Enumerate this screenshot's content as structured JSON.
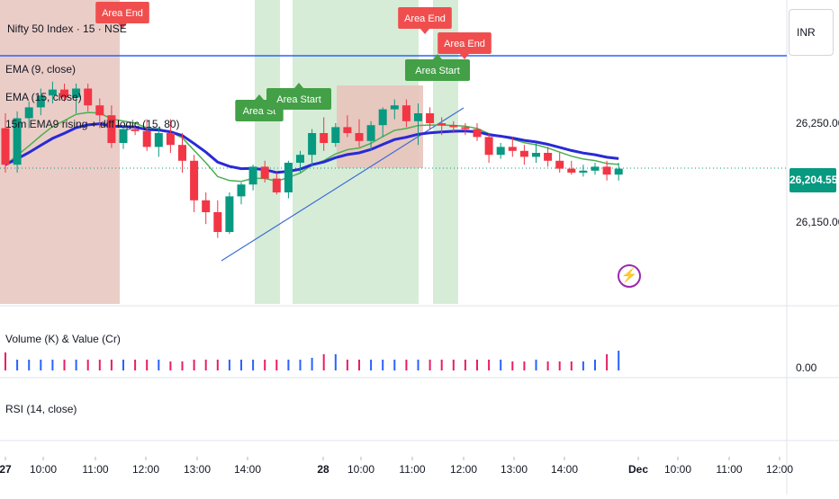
{
  "symbol": {
    "title": "Nifty 50 Index · 15 · NSE"
  },
  "legend": {
    "ema9": "EMA (9, close)",
    "ema15": "EMA (15, close)",
    "strategy": "15m EMA9 rising + diff logic (15, 80)",
    "volume": "Volume (K) & Value (Cr)",
    "rsi": "RSI (14, close)"
  },
  "currency": "INR",
  "price_axis": {
    "ticks": [
      "26,250.00",
      "26,150.00"
    ],
    "last_price": "26,204.55",
    "volume_tick": "0.00"
  },
  "time_axis": {
    "labels": [
      "27",
      "10:00",
      "11:00",
      "12:00",
      "13:00",
      "14:00",
      "28",
      "10:00",
      "11:00",
      "12:00",
      "13:00",
      "14:00",
      "Dec",
      "10:00",
      "11:00",
      "12:00"
    ]
  },
  "markers": {
    "area_end": "Area End",
    "area_start": "Area Start",
    "area_start_clipped": "Area St"
  },
  "colors": {
    "up": "#089981",
    "down": "#f23645",
    "ema9": "#4caf50",
    "ema15": "#2929d6",
    "hline": "#2962ff",
    "green_zone": "#d6ecd7",
    "red_zone": "#e8c4bd",
    "volume_up": "#2962ff",
    "volume_down": "#e91e63",
    "label_green": "#43a047",
    "label_red": "#f04e4e",
    "last_price_bg": "#089981"
  },
  "icons": {
    "lightning": "lightning-icon"
  },
  "chart_data": {
    "type": "candlestick",
    "series": [
      {
        "name": "Nifty 50 Index",
        "ohlc": [
          [
            26245,
            26260,
            26200,
            26208
          ],
          [
            26208,
            26262,
            26200,
            26255
          ],
          [
            26255,
            26272,
            26245,
            26266
          ],
          [
            26266,
            26285,
            26258,
            26278
          ],
          [
            26278,
            26292,
            26270,
            26284
          ],
          [
            26284,
            26290,
            26272,
            26276
          ],
          [
            26276,
            26290,
            26260,
            26285
          ],
          [
            26285,
            26290,
            26262,
            26268
          ],
          [
            26268,
            26275,
            26245,
            26258
          ],
          [
            26258,
            26268,
            26225,
            26230
          ],
          [
            26230,
            26248,
            26224,
            26244
          ],
          [
            26244,
            26250,
            26238,
            26242
          ],
          [
            26242,
            26254,
            26222,
            26226
          ],
          [
            26226,
            26246,
            26216,
            26240
          ],
          [
            26240,
            26254,
            26220,
            26228
          ],
          [
            26228,
            26240,
            26200,
            26212
          ],
          [
            26212,
            26218,
            26160,
            26172
          ],
          [
            26172,
            26180,
            26148,
            26160
          ],
          [
            26160,
            26172,
            26134,
            26140
          ],
          [
            26140,
            26180,
            26138,
            26176
          ],
          [
            26176,
            26190,
            26168,
            26188
          ],
          [
            26188,
            26208,
            26182,
            26206
          ],
          [
            26206,
            26212,
            26190,
            26194
          ],
          [
            26194,
            26200,
            26178,
            26180
          ],
          [
            26180,
            26212,
            26174,
            26210
          ],
          [
            26210,
            26222,
            26200,
            26218
          ],
          [
            26218,
            26244,
            26206,
            26240
          ],
          [
            26240,
            26256,
            26222,
            26230
          ],
          [
            26230,
            26250,
            26226,
            26246
          ],
          [
            26246,
            26258,
            26236,
            26240
          ],
          [
            26240,
            26254,
            26226,
            26232
          ],
          [
            26232,
            26252,
            26222,
            26248
          ],
          [
            26248,
            26266,
            26236,
            26264
          ],
          [
            26264,
            26274,
            26254,
            26268
          ],
          [
            26268,
            26274,
            26246,
            26252
          ],
          [
            26252,
            26270,
            26228,
            26260
          ],
          [
            26260,
            26266,
            26244,
            26250
          ],
          [
            26250,
            26256,
            26238,
            26248
          ],
          [
            26248,
            26252,
            26240,
            26246
          ],
          [
            26246,
            26250,
            26238,
            26244
          ],
          [
            26244,
            26250,
            26232,
            26236
          ],
          [
            26236,
            26240,
            26210,
            26218
          ],
          [
            26218,
            26230,
            26214,
            26226
          ],
          [
            26226,
            26236,
            26216,
            26222
          ],
          [
            26222,
            26228,
            26208,
            26216
          ],
          [
            26216,
            26230,
            26210,
            26220
          ],
          [
            26220,
            26226,
            26206,
            26212
          ],
          [
            26212,
            26220,
            26200,
            26204
          ],
          [
            26204,
            26212,
            26198,
            26200
          ],
          [
            26200,
            26208,
            26196,
            26202
          ],
          [
            26202,
            26210,
            26198,
            26206
          ],
          [
            26206,
            26212,
            26192,
            26198
          ],
          [
            26198,
            26210,
            26192,
            26204
          ]
        ]
      },
      {
        "name": "EMA (9, close)"
      },
      {
        "name": "EMA (15, close)"
      }
    ],
    "horizontal_line": 26288,
    "trendline": [
      [
        18,
        26142
      ],
      [
        37,
        26269
      ]
    ],
    "y_ticks": [
      26250,
      26150
    ],
    "ylim": [
      26120,
      26320
    ],
    "last_price": 26204.55,
    "volume": {
      "title": "Volume (K) & Value (Cr)",
      "values": [
        0.5,
        0.3,
        0.3,
        0.3,
        0.3,
        0.3,
        0.3,
        0.3,
        0.3,
        0.3,
        0.3,
        0.3,
        0.3,
        0.3,
        0.25,
        0.25,
        0.3,
        0.3,
        0.3,
        0.3,
        0.3,
        0.3,
        0.3,
        0.3,
        0.3,
        0.3,
        0.35,
        0.45,
        0.45,
        0.3,
        0.3,
        0.3,
        0.3,
        0.3,
        0.3,
        0.3,
        0.3,
        0.3,
        0.3,
        0.3,
        0.3,
        0.3,
        0.3,
        0.25,
        0.25,
        0.3,
        0.25,
        0.25,
        0.25,
        0.25,
        0.3,
        0.45,
        0.55
      ]
    },
    "rsi": {
      "title": "RSI (14, close)"
    }
  }
}
